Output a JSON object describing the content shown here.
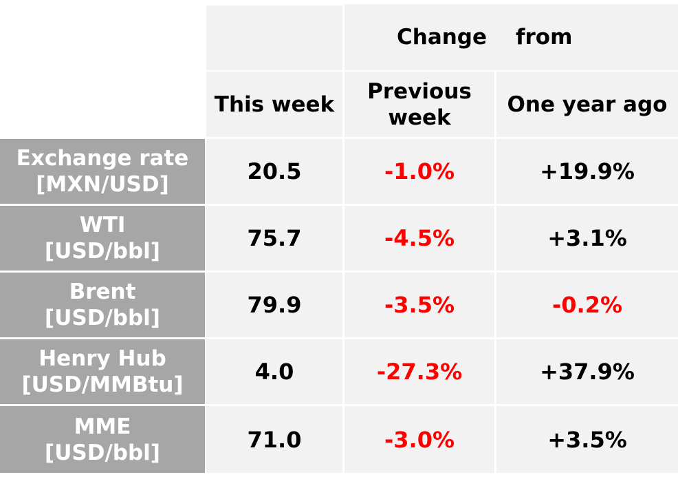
{
  "colors": {
    "header_bg": "#f2f2f2",
    "label_bg": "#a6a6a6",
    "label_text": "#ffffff",
    "negative": "#ff0000",
    "positive": "#000000"
  },
  "header": {
    "change_word": "Change",
    "from_word": "from",
    "this_week": "This week",
    "previous_week_line1": "Previous",
    "previous_week_line2": "week",
    "one_year_ago": "One year ago"
  },
  "rows": [
    {
      "label_line1": "Exchange rate",
      "label_line2": "[MXN/USD]",
      "this_week": "20.5",
      "previous_week": "-1.0%",
      "previous_week_sign": "neg",
      "one_year_ago": "+19.9%",
      "one_year_ago_sign": "pos"
    },
    {
      "label_line1": "WTI",
      "label_line2": "[USD/bbl]",
      "this_week": "75.7",
      "previous_week": "-4.5%",
      "previous_week_sign": "neg",
      "one_year_ago": "+3.1%",
      "one_year_ago_sign": "pos"
    },
    {
      "label_line1": "Brent",
      "label_line2": "[USD/bbl]",
      "this_week": "79.9",
      "previous_week": "-3.5%",
      "previous_week_sign": "neg",
      "one_year_ago": "-0.2%",
      "one_year_ago_sign": "neg"
    },
    {
      "label_line1": "Henry Hub",
      "label_line2": "[USD/MMBtu]",
      "this_week": "4.0",
      "previous_week": "-27.3%",
      "previous_week_sign": "neg",
      "one_year_ago": "+37.9%",
      "one_year_ago_sign": "pos"
    },
    {
      "label_line1": "MME",
      "label_line2": "[USD/bbl]",
      "this_week": "71.0",
      "previous_week": "-3.0%",
      "previous_week_sign": "neg",
      "one_year_ago": "+3.5%",
      "one_year_ago_sign": "pos"
    }
  ]
}
